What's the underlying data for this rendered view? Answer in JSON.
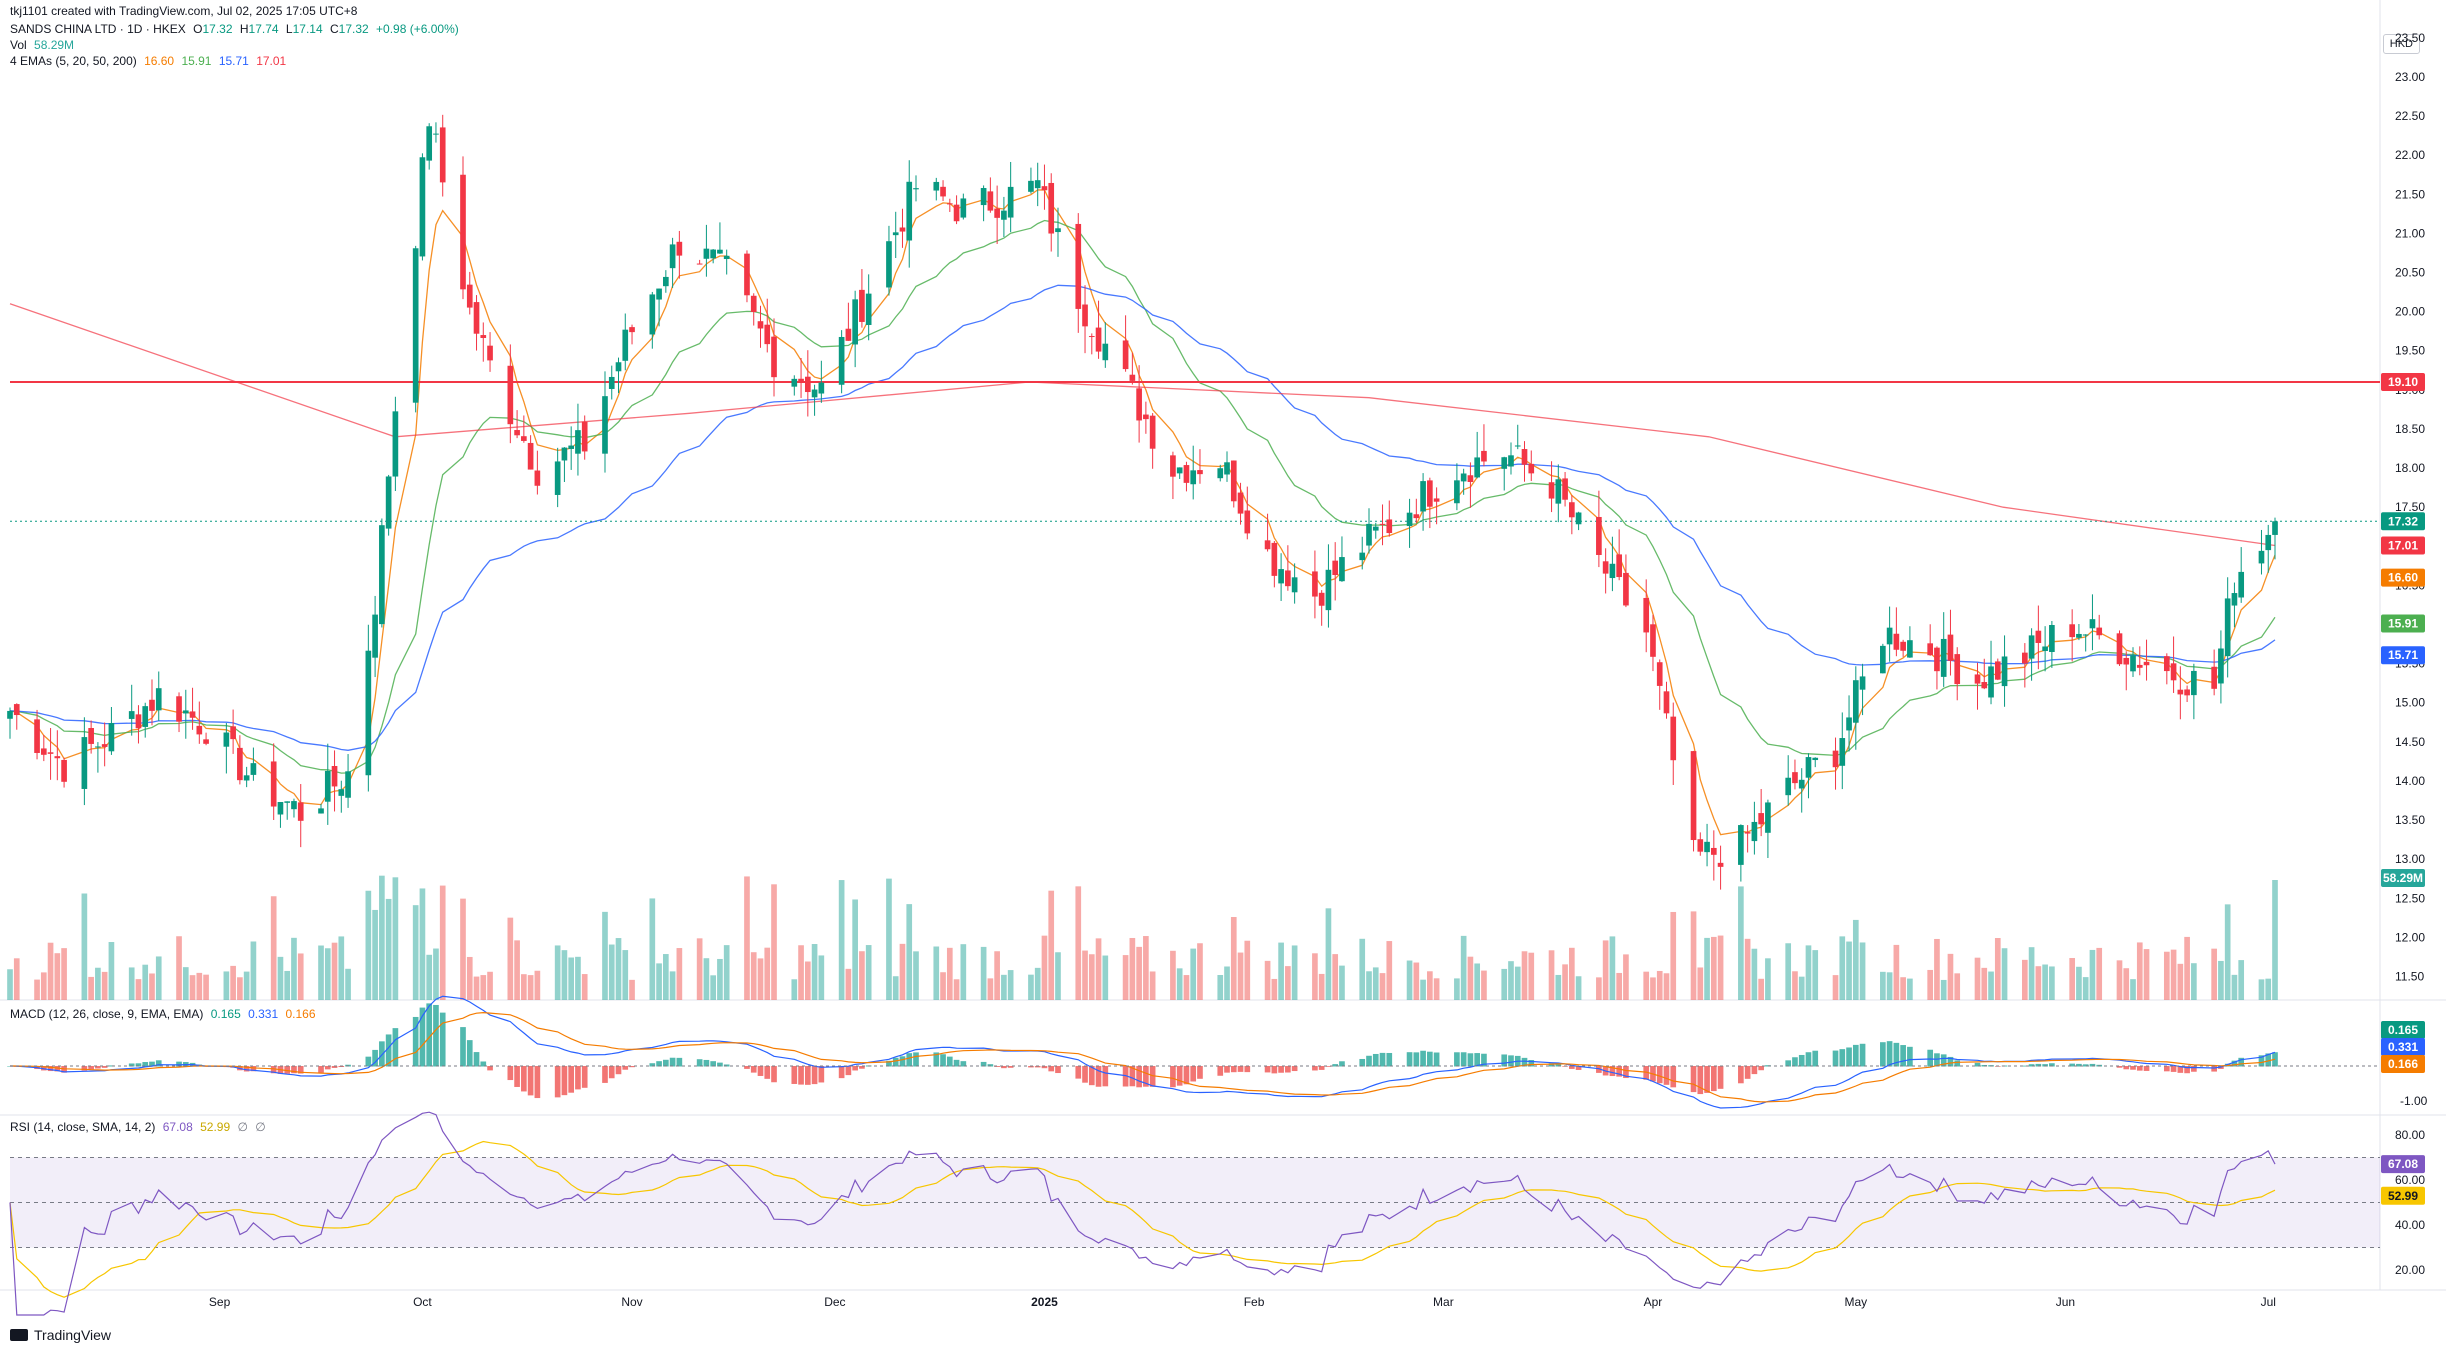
{
  "attribution": "tkj1101 created with TradingView.com, Jul 02, 2025 17:05 UTC+8",
  "symbol": {
    "title": "SANDS CHINA LTD · 1D · HKEX",
    "open_label": "O",
    "open": "17.32",
    "high_label": "H",
    "high": "17.74",
    "low_label": "L",
    "low": "17.14",
    "close_label": "C",
    "close": "17.32",
    "change": "+0.98 (+6.00%)"
  },
  "volume": {
    "label": "Vol",
    "value": "58.29M"
  },
  "emas": {
    "label": "4 EMAs (5, 20, 50, 200)",
    "values": [
      "16.60",
      "15.91",
      "15.71",
      "17.01"
    ],
    "colors": [
      "#f57c00",
      "#4caf50",
      "#2962ff",
      "#f23645"
    ]
  },
  "macd": {
    "label": "MACD (12, 26, close, 9, EMA, EMA)",
    "values": [
      "0.165",
      "0.331",
      "0.166"
    ],
    "colors": [
      "#089981",
      "#2962ff",
      "#f57c00"
    ],
    "axis_ticks": [
      "1.00",
      "0.00",
      "-1.00"
    ]
  },
  "rsi": {
    "label": "RSI (14, close, SMA, 14, 2)",
    "values": [
      "67.08",
      "52.99",
      "∅",
      "∅"
    ],
    "colors": [
      "#7e57c2",
      "#f7c600",
      "#787b86",
      "#787b86"
    ],
    "axis_ticks": [
      "80.00",
      "60.00",
      "40.00",
      "20.00"
    ]
  },
  "currency": "HKD",
  "footer": {
    "brand": "TradingView"
  },
  "chart_data": {
    "type": "candlestick",
    "title": "SANDS CHINA LTD · 1D · HKEX",
    "price_axis": {
      "ticks": [
        "23.50",
        "23.00",
        "22.50",
        "22.00",
        "21.50",
        "21.00",
        "20.50",
        "20.00",
        "19.50",
        "19.00",
        "18.50",
        "18.00",
        "17.50",
        "17.00",
        "16.50",
        "16.00",
        "15.50",
        "15.00",
        "14.50",
        "14.00",
        "13.50",
        "13.00",
        "12.50",
        "12.00",
        "11.50"
      ],
      "range": [
        11.2,
        23.6
      ]
    },
    "time_axis": [
      "Sep",
      "Oct",
      "Nov",
      "Dec",
      "2025",
      "Feb",
      "Mar",
      "Apr",
      "May",
      "Jun",
      "Jul"
    ],
    "price_badges": [
      {
        "value": "19.10",
        "color": "#f23645"
      },
      {
        "value": "17.32",
        "color": "#089981"
      },
      {
        "value": "17.01",
        "color": "#f23645"
      },
      {
        "value": "16.60",
        "color": "#f57c00"
      },
      {
        "value": "15.91",
        "color": "#4caf50"
      },
      {
        "value": "15.71",
        "color": "#2962ff"
      },
      {
        "value": "58.29M",
        "color": "#26a69a"
      }
    ],
    "horizontal_line": 19.1,
    "candle_key_closes": [
      [
        "2024-08-01",
        14.9
      ],
      [
        "2024-08-09",
        14.2
      ],
      [
        "2024-08-16",
        14.6
      ],
      [
        "2024-08-23",
        15.1
      ],
      [
        "2024-08-30",
        14.7
      ],
      [
        "2024-09-06",
        14.0
      ],
      [
        "2024-09-13",
        13.6
      ],
      [
        "2024-09-20",
        14.1
      ],
      [
        "2024-09-24",
        16.3
      ],
      [
        "2024-09-27",
        18.8
      ],
      [
        "2024-10-02",
        22.5
      ],
      [
        "2024-10-08",
        20.0
      ],
      [
        "2024-10-11",
        19.3
      ],
      [
        "2024-10-18",
        18.0
      ],
      [
        "2024-10-25",
        18.3
      ],
      [
        "2024-10-31",
        19.6
      ],
      [
        "2024-11-08",
        20.9
      ],
      [
        "2024-11-15",
        20.5
      ],
      [
        "2024-11-22",
        19.4
      ],
      [
        "2024-11-29",
        19.0
      ],
      [
        "2024-12-06",
        20.3
      ],
      [
        "2024-12-13",
        21.6
      ],
      [
        "2024-12-20",
        21.3
      ],
      [
        "2024-12-31",
        21.6
      ],
      [
        "2025-01-06",
        20.2
      ],
      [
        "2025-01-13",
        19.1
      ],
      [
        "2025-01-20",
        18.0
      ],
      [
        "2025-01-27",
        18.1
      ],
      [
        "2025-02-03",
        16.9
      ],
      [
        "2025-02-10",
        16.4
      ],
      [
        "2025-02-17",
        17.0
      ],
      [
        "2025-02-24",
        17.5
      ],
      [
        "2025-03-03",
        18.0
      ],
      [
        "2025-03-10",
        18.2
      ],
      [
        "2025-03-17",
        17.8
      ],
      [
        "2025-03-24",
        16.8
      ],
      [
        "2025-03-31",
        15.9
      ],
      [
        "2025-04-07",
        13.0
      ],
      [
        "2025-04-14",
        13.2
      ],
      [
        "2025-04-21",
        13.9
      ],
      [
        "2025-04-28",
        14.4
      ],
      [
        "2025-05-05",
        15.9
      ],
      [
        "2025-05-12",
        15.7
      ],
      [
        "2025-05-19",
        15.3
      ],
      [
        "2025-05-26",
        15.6
      ],
      [
        "2025-06-02",
        16.0
      ],
      [
        "2025-06-09",
        15.7
      ],
      [
        "2025-06-16",
        15.4
      ],
      [
        "2025-06-23",
        15.2
      ],
      [
        "2025-06-26",
        16.6
      ],
      [
        "2025-07-02",
        17.32
      ]
    ],
    "ema200_key": [
      [
        0,
        20.1
      ],
      [
        0.17,
        18.4
      ],
      [
        0.3,
        18.7
      ],
      [
        0.45,
        19.1
      ],
      [
        0.6,
        18.9
      ],
      [
        0.75,
        18.4
      ],
      [
        0.88,
        17.5
      ],
      [
        1.0,
        17.01
      ]
    ]
  }
}
